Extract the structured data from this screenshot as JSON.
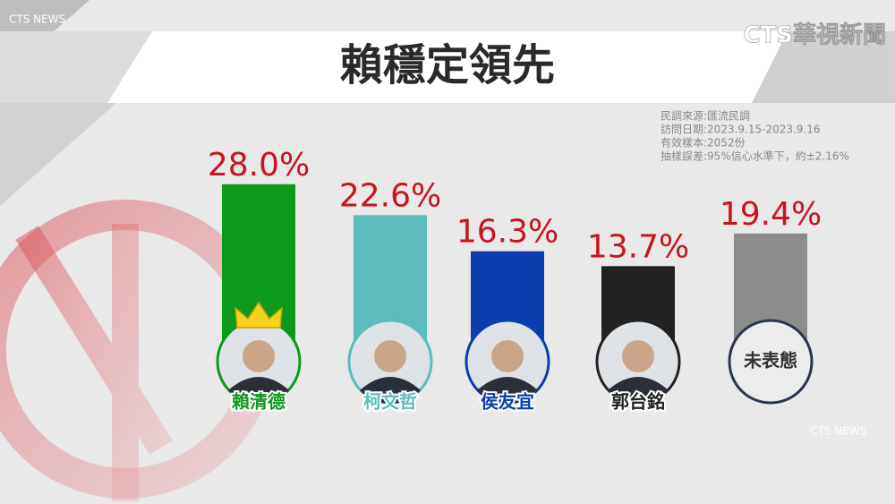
{
  "chart_data": {
    "type": "bar",
    "title": "賴穩定領先",
    "categories": [
      "賴清德",
      "柯文哲",
      "侯友宜",
      "郭台銘",
      "未表態"
    ],
    "values": [
      28.0,
      22.6,
      16.3,
      13.7,
      19.4
    ],
    "value_labels": [
      "28.0%",
      "22.6%",
      "16.3%",
      "13.7%",
      "19.4%"
    ],
    "colors": [
      "#0c9a1c",
      "#5dbdbd",
      "#0b3fae",
      "#222222",
      "#8c8c8c"
    ],
    "notes": [
      "民調來源:匯流民調",
      "訪問日期:2023.9.15-2023.9.16",
      "有效樣本:2052份",
      "抽樣誤差:95%信心水準下，約±2.16%"
    ],
    "logo": "CTS華視新聞",
    "watermark": "CTS NEWS"
  }
}
